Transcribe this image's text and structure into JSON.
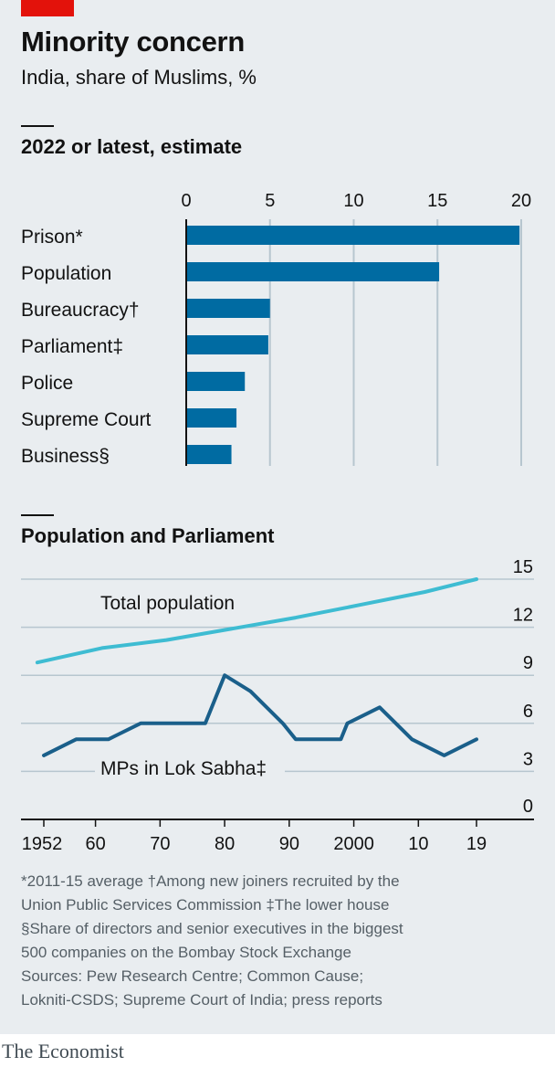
{
  "title": "Minority concern",
  "subtitle": "India, share of Muslims, %",
  "footnotes": [
    "*2011-15 average   †Among new joiners recruited by the",
    "Union Public Services Commission   ‡The lower house",
    "§Share of directors and senior executives in the biggest",
    "500 companies on the Bombay Stock Exchange"
  ],
  "sources": [
    "Sources: Pew Research Centre; Common Cause;",
    "Lokniti-CSDS; Supreme Court of India; press reports"
  ],
  "brand": "The Economist",
  "colors": {
    "bar": "#006ba2",
    "population_line": "#3ebcd2",
    "mps_line": "#1a5f8a",
    "grid": "#b7c6cf",
    "accent": "#e3120b"
  },
  "chart_data": [
    {
      "type": "bar",
      "title": "2022 or latest, estimate",
      "orientation": "horizontal",
      "categories": [
        "Prison*",
        "Population",
        "Bureaucracy†",
        "Parliament‡",
        "Police",
        "Supreme Court",
        "Business§"
      ],
      "values": [
        19.9,
        15.1,
        5.0,
        4.9,
        3.5,
        3.0,
        2.7
      ],
      "xlim": [
        0,
        20
      ],
      "xticks": [
        "0",
        "5",
        "10",
        "15",
        "20"
      ],
      "grid": true
    },
    {
      "type": "line",
      "title": "Population and Parliament",
      "ylim": [
        0,
        15
      ],
      "yticks": [
        "0",
        "3",
        "6",
        "9",
        "12",
        "15"
      ],
      "xlim": [
        1951,
        2023
      ],
      "xticks": [
        {
          "value": 1952,
          "label": "1952"
        },
        {
          "value": 1960,
          "label": "60"
        },
        {
          "value": 1970,
          "label": "70"
        },
        {
          "value": 1980,
          "label": "80"
        },
        {
          "value": 1990,
          "label": "90"
        },
        {
          "value": 2000,
          "label": "2000"
        },
        {
          "value": 2010,
          "label": "10"
        },
        {
          "value": 2019,
          "label": "19"
        }
      ],
      "grid": true,
      "series": [
        {
          "name": "Total population",
          "x": [
            1951,
            1961,
            1971,
            1981,
            1991,
            2001,
            2011,
            2019
          ],
          "y": [
            9.8,
            10.7,
            11.2,
            11.9,
            12.6,
            13.4,
            14.2,
            15.0
          ]
        },
        {
          "name": "MPs in Lok Sabha‡",
          "x": [
            1952,
            1957,
            1962,
            1967,
            1971,
            1977,
            1980,
            1984,
            1989,
            1991,
            1996,
            1998,
            1999,
            2004,
            2009,
            2014,
            2019
          ],
          "y": [
            4.0,
            5.0,
            5.0,
            6.0,
            6.0,
            6.0,
            9.0,
            8.0,
            6.0,
            5.0,
            5.0,
            5.0,
            6.0,
            7.0,
            5.0,
            4.0,
            5.0
          ]
        }
      ]
    }
  ]
}
